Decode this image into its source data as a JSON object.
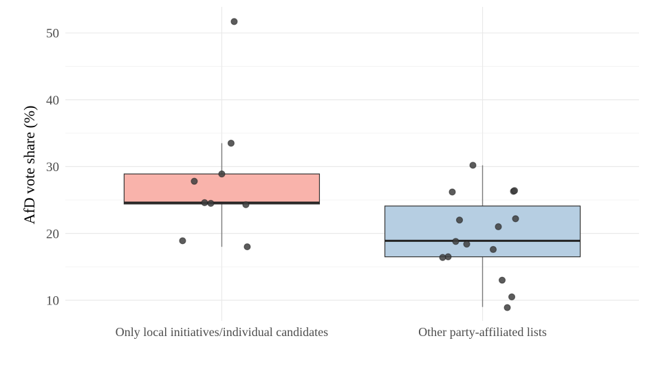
{
  "chart_data": {
    "type": "boxplot",
    "title": "",
    "ylabel": "AfD vote share (%)",
    "xlabel": "",
    "categories": [
      "Only local initiatives/individual candidates",
      "Other party-affiliated lists"
    ],
    "ylim": [
      6.9,
      53.9
    ],
    "yticks_major": [
      10,
      20,
      30,
      40,
      50
    ],
    "yticks_minor": [
      15,
      25,
      35,
      45
    ],
    "grid": "major+minor, light gray on white, vertical gridline at each category",
    "legend_position": "none",
    "series": [
      {
        "name": "Only local initiatives/individual candidates",
        "fill": "#F9B3AB",
        "box": {
          "q1": 24.4,
          "median": 24.6,
          "q3": 28.9,
          "whisker_low": 18.0,
          "whisker_high": 33.5
        },
        "points": [
          {
            "v": 51.7,
            "dx": 18
          },
          {
            "v": 33.5,
            "dx": 13.5
          },
          {
            "v": 28.9,
            "dx": 0
          },
          {
            "v": 27.8,
            "dx": -40
          },
          {
            "v": 24.6,
            "dx": -25
          },
          {
            "v": 24.5,
            "dx": -16
          },
          {
            "v": 24.3,
            "dx": 35
          },
          {
            "v": 18.9,
            "dx": -57
          },
          {
            "v": 18.0,
            "dx": 37
          }
        ]
      },
      {
        "name": "Other party-affiliated lists",
        "fill": "#B6CEE2",
        "box": {
          "q1": 16.5,
          "median": 18.9,
          "q3": 24.1,
          "whisker_low": 9.0,
          "whisker_high": 30.2
        },
        "points": [
          {
            "v": 30.2,
            "dx": -14
          },
          {
            "v": 26.2,
            "dx": -44
          },
          {
            "v": 26.3,
            "dx": 45
          },
          {
            "v": 26.4,
            "dx": 46.5
          },
          {
            "v": 22.2,
            "dx": 48
          },
          {
            "v": 22.0,
            "dx": -33.5
          },
          {
            "v": 21.0,
            "dx": 23
          },
          {
            "v": 18.8,
            "dx": -39
          },
          {
            "v": 18.4,
            "dx": -23
          },
          {
            "v": 17.6,
            "dx": 15.5
          },
          {
            "v": 16.5,
            "dx": -50
          },
          {
            "v": 16.4,
            "dx": -58
          },
          {
            "v": 13.0,
            "dx": 28.5
          },
          {
            "v": 10.5,
            "dx": 42.5
          },
          {
            "v": 8.9,
            "dx": 36
          }
        ]
      }
    ],
    "style": {
      "grid_major_color": "#E9E9E9",
      "grid_minor_color": "#F3F3F3",
      "box_stroke_color": "#333333",
      "median_color": "#252525",
      "whisker_color": "#7C7C7C",
      "point_color": "#3F3F3F",
      "tick_label_color": "#4D4D4D",
      "axis_title_color": "#1A1A1A"
    }
  }
}
